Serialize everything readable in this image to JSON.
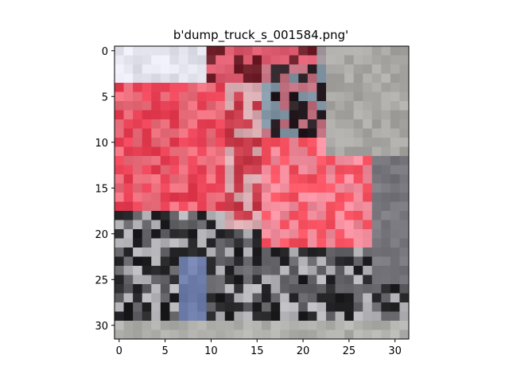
{
  "figure": {
    "title": "b'dump_truck_s_001584.png'"
  },
  "image": {
    "description_colors": {
      "truck_red": "#e8404f",
      "truck_pink": "#f08c98",
      "sky": "#e8e8ee",
      "ground_gray": "#a8a8a8",
      "tire_dark": "#2a2a2a",
      "wheel_blue": "#7a8ab0"
    },
    "grid_size": 32
  },
  "axes": {
    "x_ticks": [
      "0",
      "5",
      "10",
      "15",
      "20",
      "25",
      "30"
    ],
    "y_ticks": [
      "0",
      "5",
      "10",
      "15",
      "20",
      "25",
      "30"
    ],
    "x_tick_values": [
      0,
      5,
      10,
      15,
      20,
      25,
      30
    ],
    "y_tick_values": [
      0,
      5,
      10,
      15,
      20,
      25,
      30
    ]
  }
}
